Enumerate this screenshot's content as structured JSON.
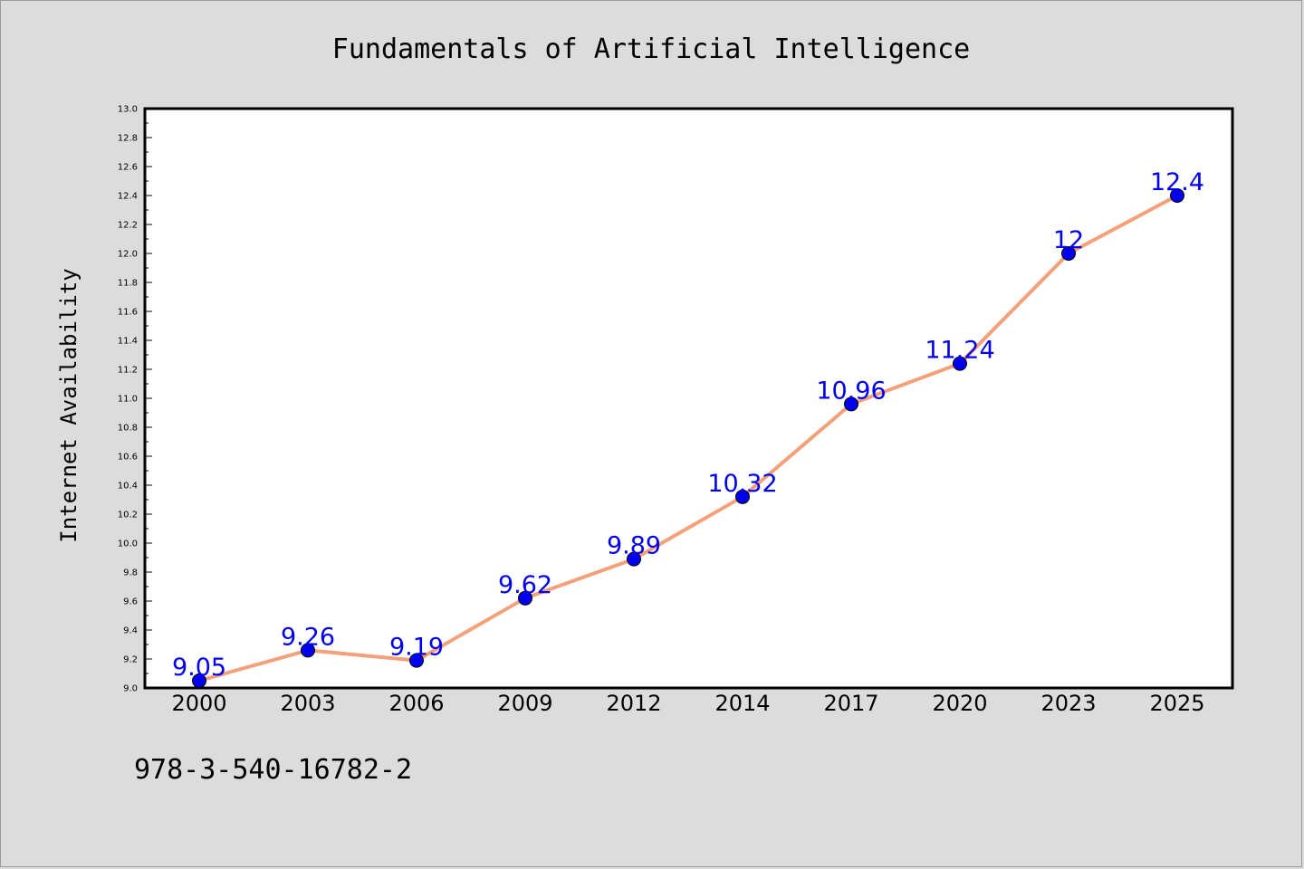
{
  "chart_data": {
    "type": "line",
    "title": "Fundamentals of Artificial Intelligence",
    "xlabel": "",
    "ylabel": "Internet Availability",
    "categories": [
      "2000",
      "2003",
      "2006",
      "2009",
      "2012",
      "2014",
      "2017",
      "2020",
      "2023",
      "2025"
    ],
    "series": [
      {
        "values": [
          9.05,
          9.26,
          9.19,
          9.62,
          9.89,
          10.32,
          10.96,
          11.24,
          12,
          12.4
        ],
        "labels": [
          "9.05",
          "9.26",
          "9.19",
          "9.62",
          "9.89",
          "10.32",
          "10.96",
          "11.24",
          "12",
          "12.4"
        ],
        "line_color": "#f4a07a",
        "marker_color": "#0000ee",
        "label_color": "#0000ee"
      }
    ],
    "ylim": [
      9.0,
      13.0
    ],
    "yticks": [
      "9.0",
      "9.2",
      "9.4",
      "9.6",
      "9.8",
      "10.0",
      "10.2",
      "10.4",
      "10.6",
      "10.8",
      "11.0",
      "11.2",
      "11.4",
      "11.6",
      "11.8",
      "12.0",
      "12.2",
      "12.4",
      "12.6",
      "12.8",
      "13.0"
    ],
    "grid": false,
    "legend": "none"
  },
  "footnote": "978-3-540-16782-2",
  "colors": {
    "background": "#dcdcdc",
    "plot_background": "#ffffff",
    "axis": "#000000"
  }
}
